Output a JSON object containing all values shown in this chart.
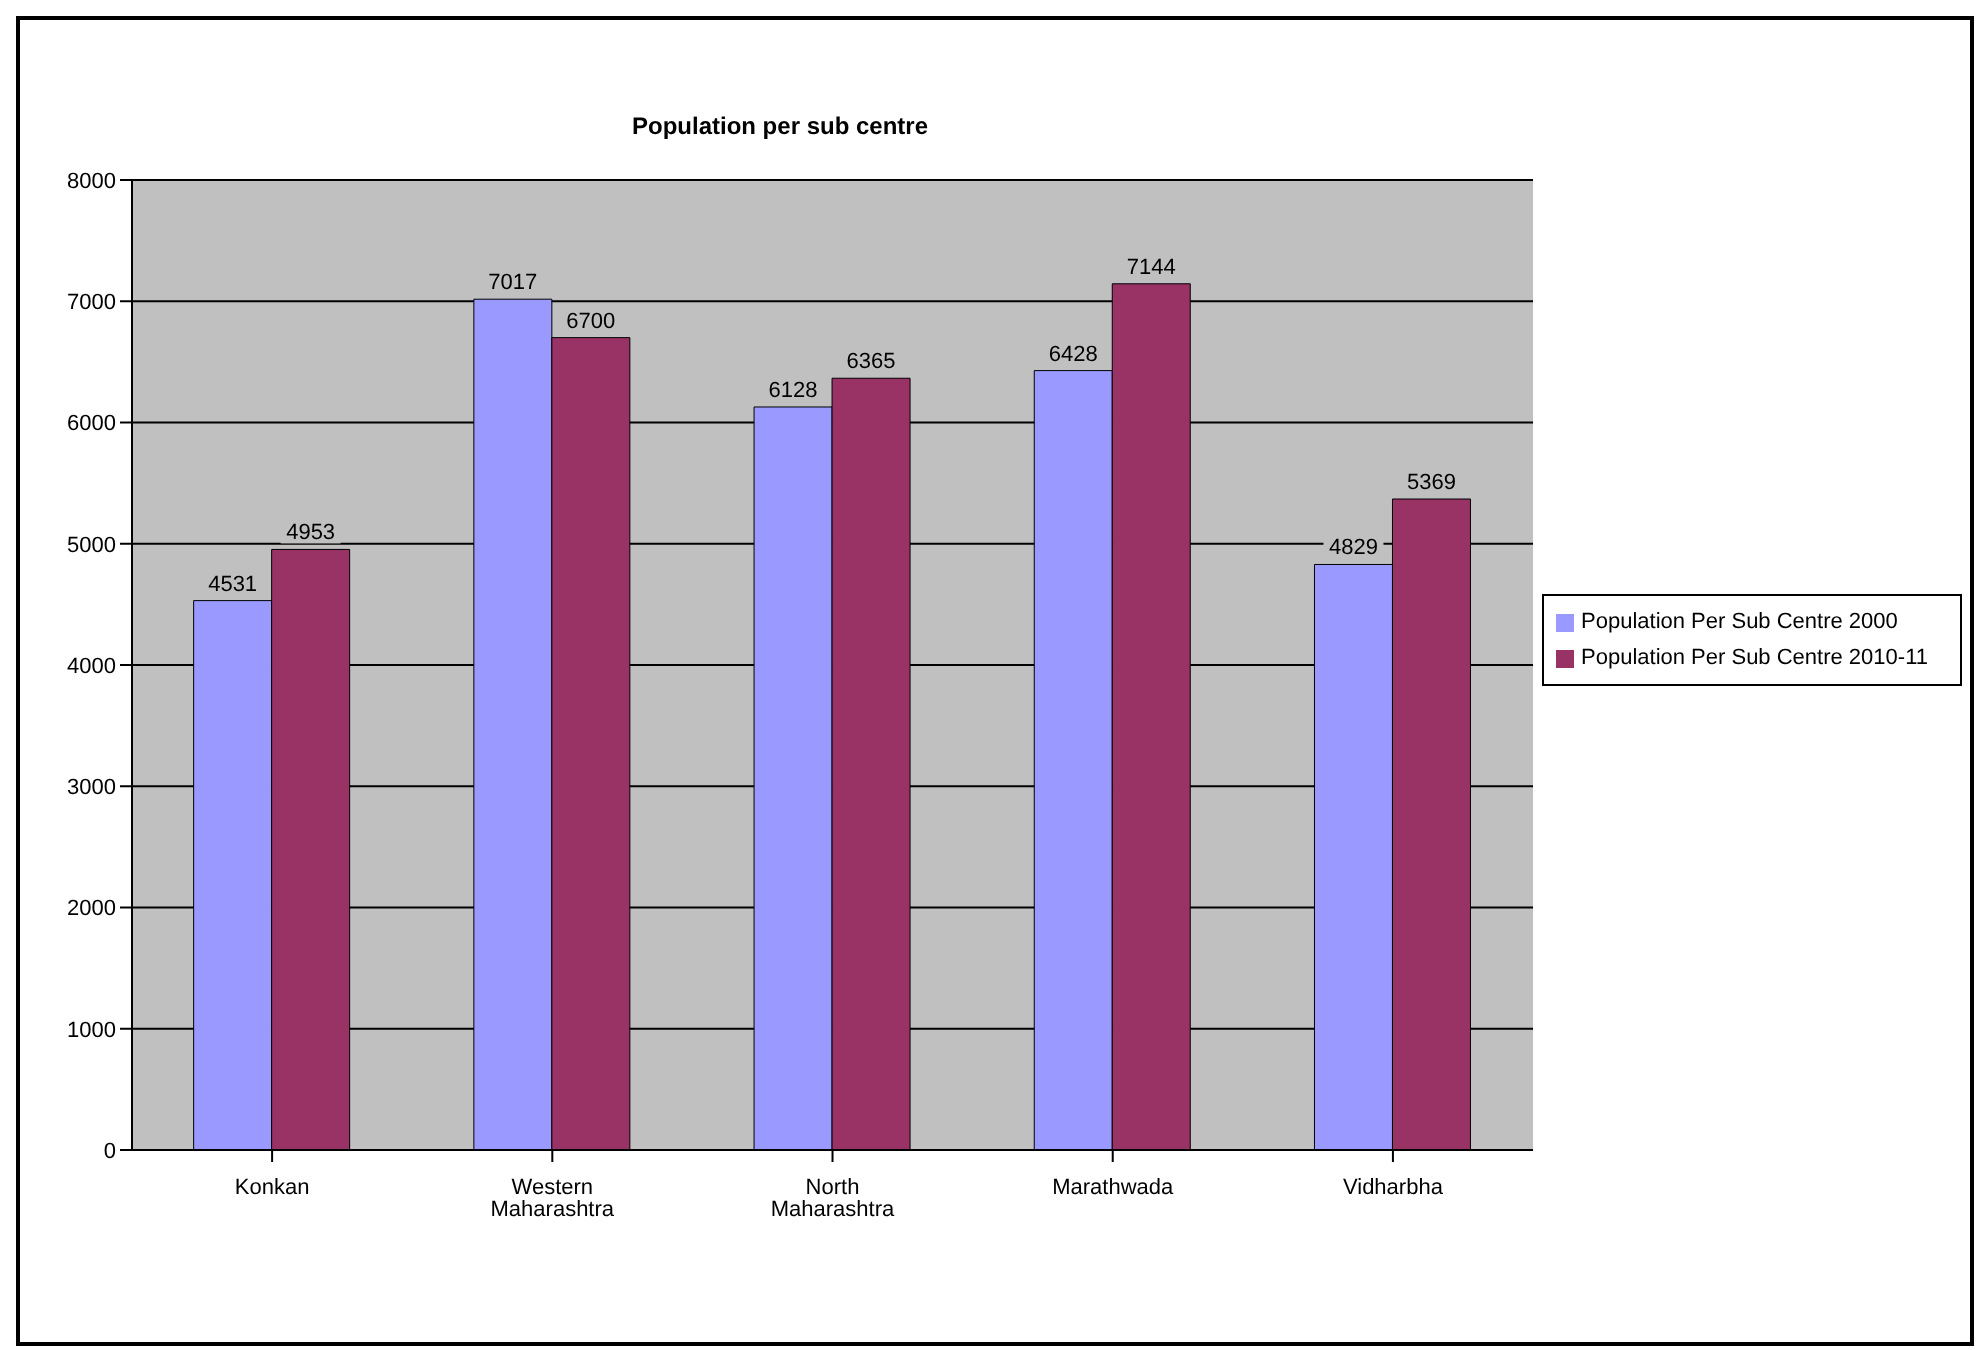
{
  "chart_data": {
    "type": "bar",
    "title": "Population per sub centre",
    "categories": [
      "Konkan",
      "Western Maharashtra",
      "North Maharashtra",
      "Marathwada",
      "Vidharbha"
    ],
    "series": [
      {
        "name": "Population Per Sub Centre 2000",
        "color": "#9999ff",
        "values": [
          4531,
          7017,
          6128,
          6428,
          4829
        ]
      },
      {
        "name": "Population Per Sub Centre 2010-11",
        "color": "#993366",
        "values": [
          4953,
          6700,
          6365,
          7144,
          5369
        ]
      }
    ],
    "ylim": [
      0,
      8000
    ],
    "yticks": [
      0,
      1000,
      2000,
      3000,
      4000,
      5000,
      6000,
      7000,
      8000
    ],
    "grid": "y",
    "legend": "right",
    "data_labels": true
  }
}
